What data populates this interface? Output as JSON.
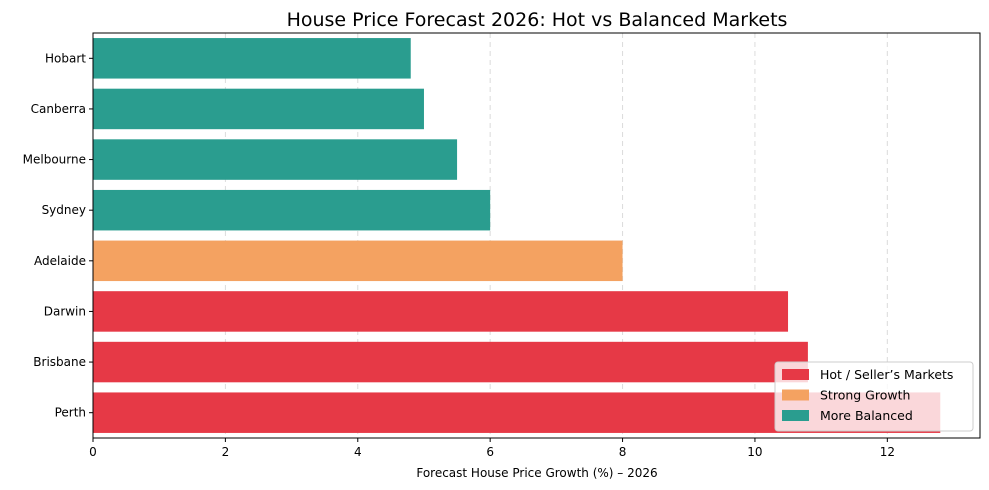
{
  "chart_data": {
    "type": "bar",
    "orientation": "horizontal",
    "title": "House Price Forecast 2026: Hot vs Balanced Markets",
    "xlabel": "Forecast House Price Growth (%) – 2026",
    "ylabel": "",
    "xlim": [
      0,
      13.4
    ],
    "xticks": [
      0,
      2,
      4,
      6,
      8,
      10,
      12
    ],
    "grid": "vertical dashed",
    "legend_position": "lower-right",
    "categories": [
      "Perth",
      "Brisbane",
      "Darwin",
      "Adelaide",
      "Sydney",
      "Melbourne",
      "Canberra",
      "Hobart"
    ],
    "values": [
      12.8,
      10.8,
      10.5,
      8.0,
      6.0,
      5.5,
      5.0,
      4.8
    ],
    "groups": [
      "hot",
      "hot",
      "hot",
      "strong",
      "balanced",
      "balanced",
      "balanced",
      "balanced"
    ],
    "legend": [
      {
        "key": "hot",
        "label": "Hot / Seller’s Markets",
        "color": "#e63946"
      },
      {
        "key": "strong",
        "label": "Strong Growth",
        "color": "#f4a261"
      },
      {
        "key": "balanced",
        "label": "More Balanced",
        "color": "#2a9d8f"
      }
    ]
  }
}
